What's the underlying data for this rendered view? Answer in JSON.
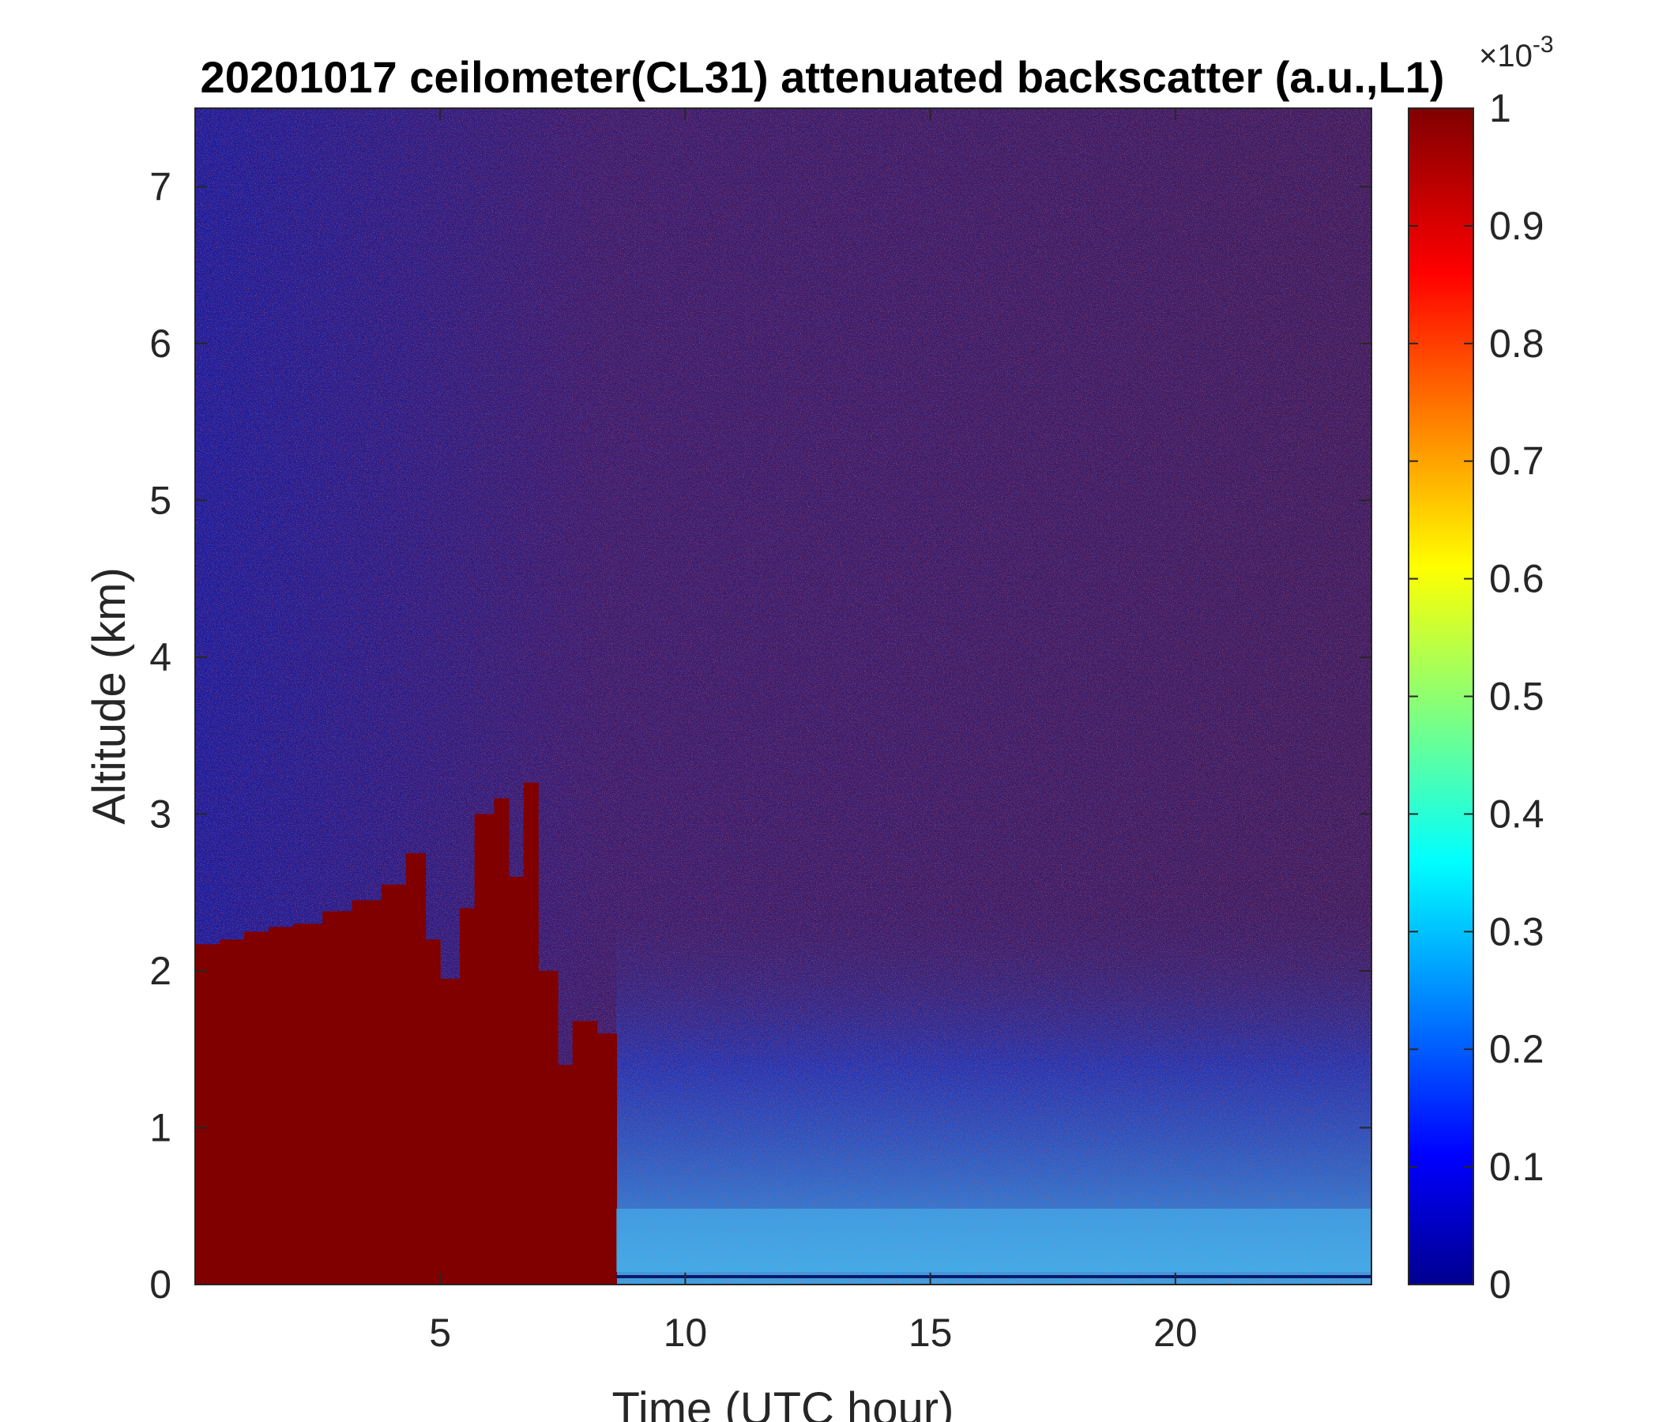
{
  "chart_data": {
    "type": "heatmap",
    "title": "20201017 ceilometer(CL31) attenuated backscatter (a.u.,L1)",
    "xlabel": "Time (UTC hour)",
    "ylabel": "Altitude (km)",
    "xlim": [
      0,
      24
    ],
    "ylim": [
      0,
      7.5
    ],
    "xticks": [
      5,
      10,
      15,
      20
    ],
    "yticks": [
      0,
      1,
      2,
      3,
      4,
      5,
      6,
      7
    ],
    "colormap": "jet",
    "colorbar": {
      "clim": [
        0,
        1
      ],
      "ticks": [
        0,
        0.1,
        0.2,
        0.3,
        0.4,
        0.5,
        0.6,
        0.7,
        0.8,
        0.9,
        1
      ],
      "exponent_base": "×10",
      "exponent_power": "-3"
    },
    "cloud_layers": [
      {
        "x_start": 0.0,
        "x_end": 0.5,
        "top_km": 2.17
      },
      {
        "x_start": 0.5,
        "x_end": 1.0,
        "top_km": 2.2
      },
      {
        "x_start": 1.0,
        "x_end": 1.5,
        "top_km": 2.25
      },
      {
        "x_start": 1.5,
        "x_end": 2.0,
        "top_km": 2.28
      },
      {
        "x_start": 2.0,
        "x_end": 2.6,
        "top_km": 2.3
      },
      {
        "x_start": 2.6,
        "x_end": 3.2,
        "top_km": 2.38
      },
      {
        "x_start": 3.2,
        "x_end": 3.8,
        "top_km": 2.45
      },
      {
        "x_start": 3.8,
        "x_end": 4.3,
        "top_km": 2.55
      },
      {
        "x_start": 4.3,
        "x_end": 4.7,
        "top_km": 2.75
      },
      {
        "x_start": 4.7,
        "x_end": 5.0,
        "top_km": 2.2
      },
      {
        "x_start": 5.0,
        "x_end": 5.4,
        "top_km": 1.95
      },
      {
        "x_start": 5.4,
        "x_end": 5.7,
        "top_km": 2.4
      },
      {
        "x_start": 5.7,
        "x_end": 6.1,
        "top_km": 3.0
      },
      {
        "x_start": 6.1,
        "x_end": 6.4,
        "top_km": 3.1
      },
      {
        "x_start": 6.4,
        "x_end": 6.7,
        "top_km": 2.6
      },
      {
        "x_start": 6.7,
        "x_end": 7.0,
        "top_km": 3.2
      },
      {
        "x_start": 7.0,
        "x_end": 7.4,
        "top_km": 2.0
      },
      {
        "x_start": 7.4,
        "x_end": 7.7,
        "top_km": 1.4
      },
      {
        "x_start": 7.7,
        "x_end": 8.2,
        "top_km": 1.68
      },
      {
        "x_start": 8.2,
        "x_end": 8.6,
        "top_km": 1.6
      }
    ]
  }
}
